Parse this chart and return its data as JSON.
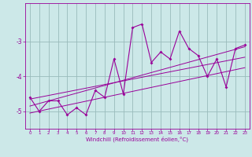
{
  "title": "",
  "xlabel": "Windchill (Refroidissement éolien,°C)",
  "ylabel": "",
  "background_color": "#cce8e8",
  "line_color": "#990099",
  "grid_color": "#99bbbb",
  "x_data": [
    0,
    1,
    2,
    3,
    4,
    5,
    6,
    7,
    8,
    9,
    10,
    11,
    12,
    13,
    14,
    15,
    16,
    17,
    18,
    19,
    20,
    21,
    22,
    23
  ],
  "y_main": [
    -4.6,
    -5.0,
    -4.7,
    -4.7,
    -5.1,
    -4.9,
    -5.1,
    -4.4,
    -4.6,
    -3.5,
    -4.5,
    -2.6,
    -2.5,
    -3.6,
    -3.3,
    -3.5,
    -2.7,
    -3.2,
    -3.4,
    -4.0,
    -3.5,
    -4.3,
    -3.2,
    -3.1
  ],
  "trend1_x": [
    0,
    23
  ],
  "trend1_y": [
    -4.85,
    -3.15
  ],
  "trend2_x": [
    0,
    23
  ],
  "trend2_y": [
    -4.65,
    -3.45
  ],
  "trend3_x": [
    0,
    23
  ],
  "trend3_y": [
    -5.05,
    -3.75
  ],
  "ylim": [
    -5.5,
    -1.9
  ],
  "xlim": [
    -0.5,
    23.5
  ],
  "yticks": [
    -5,
    -4,
    -3
  ],
  "xticks": [
    0,
    1,
    2,
    3,
    4,
    5,
    6,
    7,
    8,
    9,
    10,
    11,
    12,
    13,
    14,
    15,
    16,
    17,
    18,
    19,
    20,
    21,
    22,
    23
  ]
}
